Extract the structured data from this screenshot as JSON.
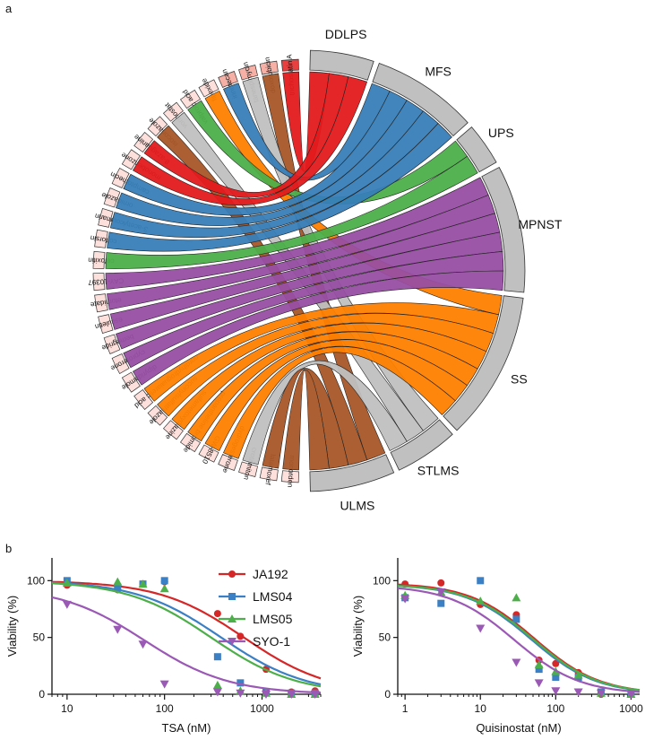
{
  "panel_labels": [
    "a",
    "b"
  ],
  "chart_data": [
    {
      "type": "chord",
      "panel": "a",
      "drugs": [
        "trichostatin A",
        "doxorubicin",
        "tanespimycin",
        "irinotecan",
        "fipexide",
        "valproic acid",
        "vorinostat",
        "isoconazole",
        "8-azaguanine",
        "monobenzone",
        "camptothecin",
        "ornidazole",
        "3-acetylcoumarin",
        "colforsin",
        "cefoxitin",
        "CAY-10397",
        "etomidate",
        "esculetin",
        "bemegride",
        "cyproterone",
        "dipyridamole",
        "nordihydroguaiaretic acid",
        "succinylsulfathiazole",
        "sulfametoxydiazine",
        "propantheline bromide",
        "GW-8510",
        "dydrogesterone",
        "crotamiton",
        "latamoxef",
        "monorden"
      ],
      "subtypes": [
        {
          "name": "DDLPS",
          "color": "#e41a1c"
        },
        {
          "name": "MFS",
          "color": "#377eb8"
        },
        {
          "name": "UPS",
          "color": "#4daf4a"
        },
        {
          "name": "MPNST",
          "color": "#984ea3"
        },
        {
          "name": "SS",
          "color": "#ff7f00"
        },
        {
          "name": "STLMS",
          "color": "#c0c0c0"
        },
        {
          "name": "ULMS",
          "color": "#a65628"
        }
      ],
      "links": [
        {
          "drug": "trichostatin A",
          "subtype": "DDLPS"
        },
        {
          "drug": "doxorubicin",
          "subtype": "ULMS"
        },
        {
          "drug": "tanespimycin",
          "subtype": "STLMS"
        },
        {
          "drug": "irinotecan",
          "subtype": "MFS"
        },
        {
          "drug": "fipexide",
          "subtype": "SS"
        },
        {
          "drug": "valproic acid",
          "subtype": "UPS"
        },
        {
          "drug": "vorinostat",
          "subtype": "STLMS"
        },
        {
          "drug": "isoconazole",
          "subtype": "ULMS"
        },
        {
          "drug": "8-azaguanine",
          "subtype": "DDLPS"
        },
        {
          "drug": "monobenzone",
          "subtype": "DDLPS"
        },
        {
          "drug": "camptothecin",
          "subtype": "MFS"
        },
        {
          "drug": "ornidazole",
          "subtype": "MFS"
        },
        {
          "drug": "3-acetylcoumarin",
          "subtype": "MFS"
        },
        {
          "drug": "colforsin",
          "subtype": "MFS"
        },
        {
          "drug": "cefoxitin",
          "subtype": "UPS"
        },
        {
          "drug": "CAY-10397",
          "subtype": "MPNST"
        },
        {
          "drug": "etomidate",
          "subtype": "MPNST"
        },
        {
          "drug": "esculetin",
          "subtype": "MPNST"
        },
        {
          "drug": "bemegride",
          "subtype": "MPNST"
        },
        {
          "drug": "cyproterone",
          "subtype": "MPNST"
        },
        {
          "drug": "dipyridamole",
          "subtype": "MPNST"
        },
        {
          "drug": "nordihydroguaiaretic acid",
          "subtype": "SS"
        },
        {
          "drug": "succinylsulfathiazole",
          "subtype": "SS"
        },
        {
          "drug": "sulfametoxydiazine",
          "subtype": "SS"
        },
        {
          "drug": "propantheline bromide",
          "subtype": "SS"
        },
        {
          "drug": "GW-8510",
          "subtype": "SS"
        },
        {
          "drug": "dydrogesterone",
          "subtype": "SS"
        },
        {
          "drug": "crotamiton",
          "subtype": "STLMS"
        },
        {
          "drug": "latamoxef",
          "subtype": "ULMS"
        },
        {
          "drug": "monorden",
          "subtype": "ULMS"
        }
      ]
    },
    {
      "type": "line",
      "panel": "b",
      "xscale": "log",
      "xlabel": "TSA (nM)",
      "ylabel": "Viability (%)",
      "xlim": [
        7,
        4000
      ],
      "ylim": [
        0,
        120
      ],
      "xticks": [
        10,
        100,
        1000
      ],
      "xtick_labels": [
        "10",
        "100",
        "1000"
      ],
      "yticks": [
        0,
        50,
        100
      ],
      "legend": "top-right",
      "series": [
        {
          "name": "JA192",
          "color": "#d62728",
          "marker": "circle",
          "points": [
            [
              10,
              96
            ],
            [
              33,
              92
            ],
            [
              60,
              97
            ],
            [
              100,
              99
            ],
            [
              350,
              71
            ],
            [
              600,
              51
            ],
            [
              1100,
              22
            ],
            [
              2000,
              2
            ],
            [
              3500,
              3
            ]
          ],
          "curve": {
            "ic50": 650,
            "hill": 1.0,
            "top": 100
          }
        },
        {
          "name": "LMS04",
          "color": "#3b7fc4",
          "marker": "square",
          "points": [
            [
              10,
              100
            ],
            [
              33,
              94
            ],
            [
              60,
              97
            ],
            [
              100,
              100
            ],
            [
              350,
              33
            ],
            [
              600,
              10
            ],
            [
              1100,
              2
            ],
            [
              2000,
              1
            ],
            [
              3500,
              1
            ]
          ],
          "curve": {
            "ic50": 380,
            "hill": 1.0,
            "top": 100
          }
        },
        {
          "name": "LMS05",
          "color": "#4daf4a",
          "marker": "triangle",
          "points": [
            [
              10,
              98
            ],
            [
              33,
              99
            ],
            [
              60,
              97
            ],
            [
              100,
              93
            ],
            [
              350,
              8
            ],
            [
              600,
              3
            ],
            [
              1100,
              1
            ],
            [
              2000,
              0
            ],
            [
              3500,
              0
            ]
          ],
          "curve": {
            "ic50": 300,
            "hill": 1.0,
            "top": 100
          }
        },
        {
          "name": "SYO-1",
          "color": "#9b59b6",
          "marker": "triangle-down",
          "points": [
            [
              10,
              79
            ],
            [
              33,
              57
            ],
            [
              60,
              44
            ],
            [
              100,
              9
            ],
            [
              350,
              2
            ],
            [
              600,
              1
            ],
            [
              1100,
              0
            ],
            [
              2000,
              0
            ],
            [
              3500,
              0
            ]
          ],
          "curve": {
            "ic50": 62,
            "hill": 1.0,
            "top": 95
          }
        }
      ]
    },
    {
      "type": "line",
      "panel": "b",
      "xscale": "log",
      "xlabel": "Quisinostat (nM)",
      "ylabel": "Viability (%)",
      "xlim": [
        0.8,
        1300
      ],
      "ylim": [
        0,
        120
      ],
      "xticks": [
        1,
        10,
        100,
        1000
      ],
      "xtick_labels": [
        "1",
        "10",
        "100",
        "1000"
      ],
      "yticks": [
        0,
        50,
        100
      ],
      "series": [
        {
          "name": "JA192",
          "color": "#d62728",
          "marker": "circle",
          "points": [
            [
              1,
              97
            ],
            [
              3,
              98
            ],
            [
              10,
              79
            ],
            [
              30,
              70
            ],
            [
              60,
              30
            ],
            [
              100,
              27
            ],
            [
              200,
              19
            ],
            [
              400,
              0
            ],
            [
              1000,
              0
            ]
          ],
          "curve": {
            "ic50": 52,
            "hill": 1.0,
            "top": 98
          }
        },
        {
          "name": "LMS04",
          "color": "#3b7fc4",
          "marker": "square",
          "points": [
            [
              1,
              85
            ],
            [
              3,
              80
            ],
            [
              10,
              100
            ],
            [
              30,
              66
            ],
            [
              60,
              22
            ],
            [
              100,
              15
            ],
            [
              200,
              15
            ],
            [
              400,
              2
            ],
            [
              1000,
              1
            ]
          ],
          "curve": {
            "ic50": 47,
            "hill": 1.0,
            "top": 97
          }
        },
        {
          "name": "LMS05",
          "color": "#4daf4a",
          "marker": "triangle",
          "points": [
            [
              1,
              87
            ],
            [
              3,
              90
            ],
            [
              10,
              82
            ],
            [
              30,
              85
            ],
            [
              60,
              26
            ],
            [
              100,
              20
            ],
            [
              200,
              17
            ],
            [
              400,
              1
            ],
            [
              1000,
              0
            ]
          ],
          "curve": {
            "ic50": 50,
            "hill": 1.0,
            "top": 97
          }
        },
        {
          "name": "SYO-1",
          "color": "#9b59b6",
          "marker": "triangle-down",
          "points": [
            [
              1,
              84
            ],
            [
              3,
              90
            ],
            [
              10,
              58
            ],
            [
              30,
              28
            ],
            [
              60,
              10
            ],
            [
              100,
              3
            ],
            [
              200,
              2
            ],
            [
              400,
              1
            ],
            [
              1000,
              0
            ]
          ],
          "curve": {
            "ic50": 28,
            "hill": 1.0,
            "top": 96
          }
        }
      ]
    }
  ]
}
